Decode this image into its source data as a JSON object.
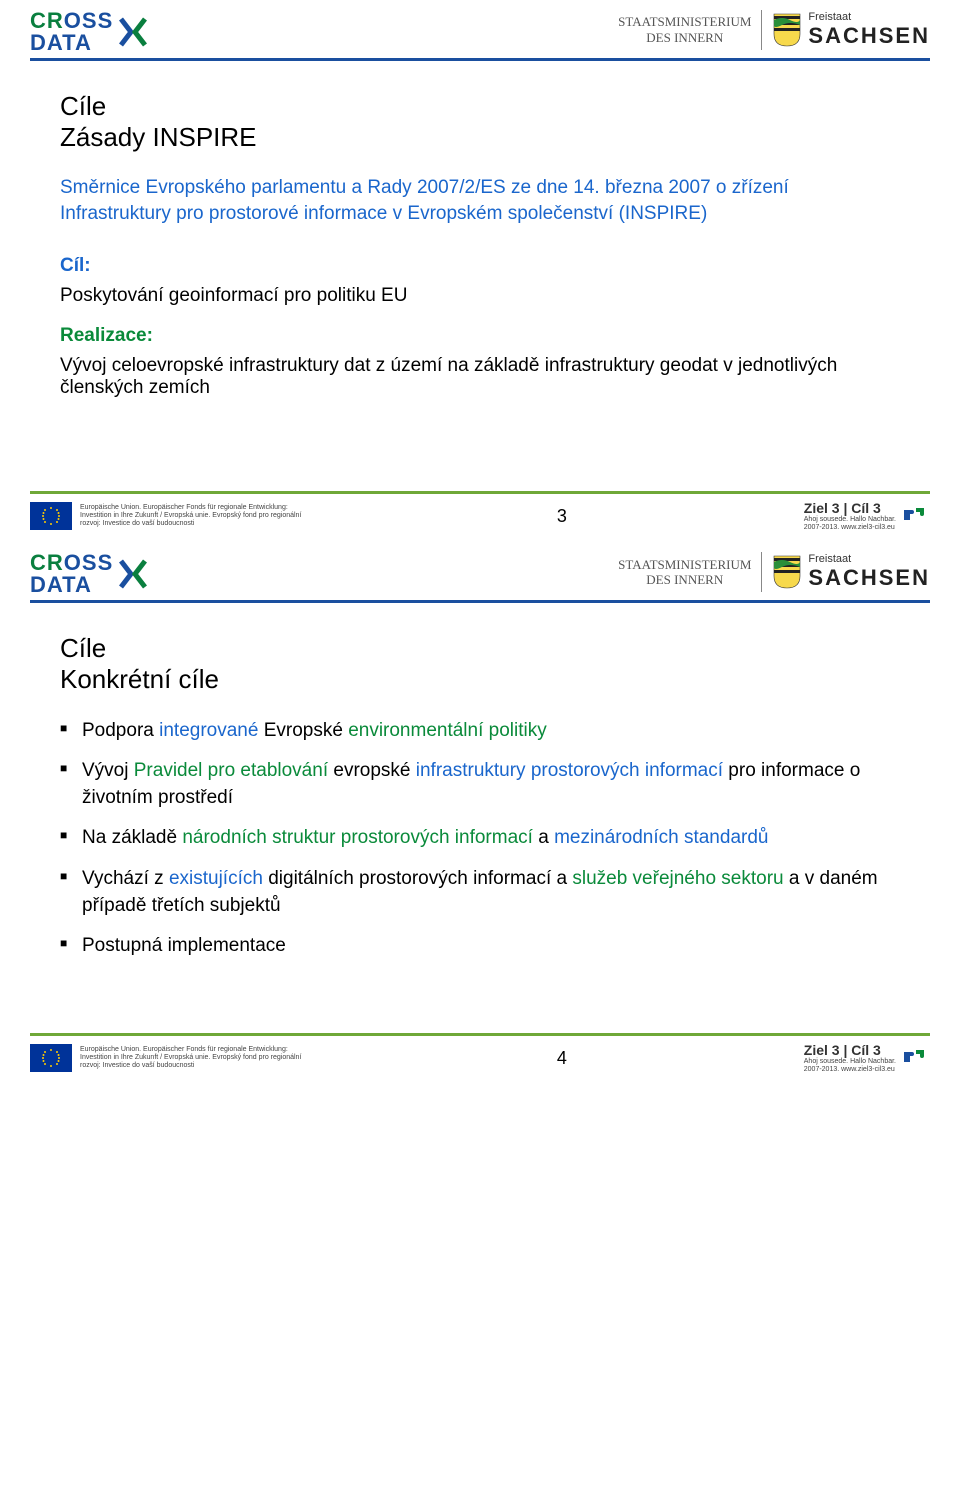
{
  "colors": {
    "rule_blue": "#1a4f9f",
    "rule_green": "#6fa838",
    "text_blue": "#1a66cc",
    "text_green": "#0a8a3a",
    "eu_flag_bg": "#003399",
    "eu_star": "#ffcc00"
  },
  "header": {
    "cross": "CROSS",
    "data": "DATA",
    "staatsmin_l1": "STAATSMINISTERIUM",
    "staatsmin_l2": "DES INNERN",
    "freistaat": "Freistaat",
    "sachsen": "SACHSEN"
  },
  "slide1": {
    "title_l1": "Cíle",
    "title_l2": "Zásady INSPIRE",
    "intro": "Směrnice Evropského parlamentu a Rady 2007/2/ES ze dne 14. března 2007 o zřízení Infrastruktury pro prostorové informace v Evropském společenství (INSPIRE)",
    "cil_label": "Cíl:",
    "cil_text": "Poskytování geoinformací pro politiku  EU",
    "realizace_label": "Realizace:",
    "realizace_text": "Vývoj celoevropské infrastruktury dat z území na základě infrastruktury geodat v jednotlivých členských zemích",
    "page": "3"
  },
  "slide2": {
    "title_l1": "Cíle",
    "title_l2": "Konkrétní cíle",
    "bullets": [
      {
        "parts": [
          {
            "t": "Podpora "
          },
          {
            "t": "integrované",
            "c": "blue"
          },
          {
            "t": " Evropské "
          },
          {
            "t": "environmentální politiky",
            "c": "green"
          }
        ]
      },
      {
        "parts": [
          {
            "t": "Vývoj "
          },
          {
            "t": "Pravidel pro etablování",
            "c": "green"
          },
          {
            "t": " evropské "
          },
          {
            "t": "infrastruktury prostorových informací",
            "c": "blue"
          },
          {
            "t": " pro informace o životním prostředí"
          }
        ]
      },
      {
        "parts": [
          {
            "t": "Na základě "
          },
          {
            "t": "národních struktur prostorových informací",
            "c": "green"
          },
          {
            "t": " a "
          },
          {
            "t": "mezinárodních standardů",
            "c": "blue"
          }
        ]
      },
      {
        "parts": [
          {
            "t": "Vychází z "
          },
          {
            "t": "existujících",
            "c": "blue"
          },
          {
            "t": " digitálních prostorových informací a "
          },
          {
            "t": "služeb veřejného sektoru",
            "c": "green"
          },
          {
            "t": " a v daném případě třetích subjektů"
          }
        ]
      },
      {
        "parts": [
          {
            "t": "Postupná implementace"
          }
        ]
      }
    ],
    "page": "4"
  },
  "footer": {
    "eu_text": "Europäische Union. Europäischer Fonds für regionale Entwicklung: Investition in Ihre Zukunft / Evropská unie. Evropský fond pro regionální rozvoj: Investice do vaší budoucnosti",
    "ziel_main": "Ziel 3 | Cíl 3",
    "ziel_sub": "Ahoj sousede. Hallo Nachbar.\n2007-2013. www.ziel3-cil3.eu"
  }
}
